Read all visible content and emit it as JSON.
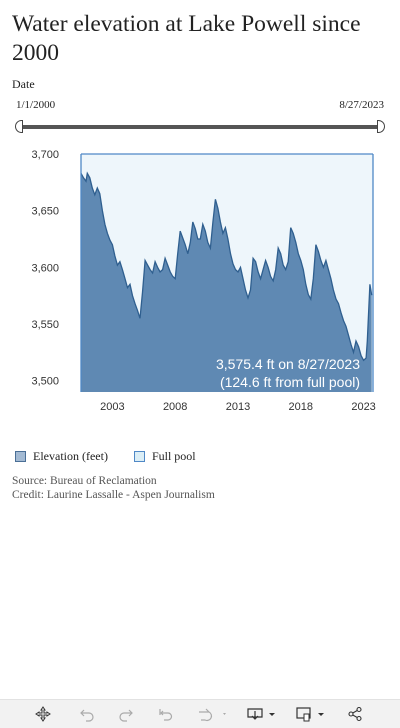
{
  "title": "Water elevation at Lake Powell since 2000",
  "filter": {
    "label": "Date",
    "start": "1/1/2000",
    "end": "8/27/2023"
  },
  "legend": [
    {
      "label": "Elevation (feet)",
      "color": "#a3bad3"
    },
    {
      "label": "Full pool",
      "color": "#dbeef6"
    }
  ],
  "source_lines": [
    "Source: Bureau of Reclamation",
    "Credit: Laurine Lassalle - Aspen Journalism"
  ],
  "colors": {
    "elevation_fill": "#5f89b3",
    "elevation_line": "#2f5f8f",
    "full_pool_fill": "#eef6fb",
    "full_pool_line": "#4f88c6"
  },
  "toolbar": {
    "icons": [
      "move-icon",
      "undo-icon",
      "redo-icon",
      "revert-icon",
      "refresh-icon",
      "download-icon",
      "device-layout-icon",
      "share-icon"
    ]
  },
  "chart_data": {
    "type": "area",
    "xlim": [
      2000.5,
      2023.75
    ],
    "ylim": [
      3490,
      3700
    ],
    "yticks": [
      3500,
      3550,
      3600,
      3650,
      3700
    ],
    "ytick_labels": [
      "3,500",
      "3,550",
      "3,600",
      "3,650",
      "3,700"
    ],
    "xticks": [
      2003,
      2008,
      2013,
      2018,
      2023
    ],
    "xtick_labels": [
      "2003",
      "2008",
      "2013",
      "2018",
      "2023"
    ],
    "full_pool": 3700,
    "annotation": [
      "3,575.4 ft on 8/27/2023",
      "(124.6 ft from full pool)"
    ],
    "series": [
      {
        "name": "Elevation (feet)",
        "x": [
          2000.5,
          2000.7,
          2000.9,
          2001.0,
          2001.2,
          2001.4,
          2001.6,
          2001.8,
          2002.0,
          2002.2,
          2002.4,
          2002.6,
          2002.8,
          2003.0,
          2003.2,
          2003.4,
          2003.6,
          2003.8,
          2004.0,
          2004.2,
          2004.4,
          2004.6,
          2004.8,
          2005.0,
          2005.2,
          2005.4,
          2005.6,
          2005.8,
          2006.0,
          2006.2,
          2006.4,
          2006.6,
          2006.8,
          2007.0,
          2007.2,
          2007.4,
          2007.6,
          2007.8,
          2008.0,
          2008.2,
          2008.4,
          2008.6,
          2008.8,
          2009.0,
          2009.2,
          2009.4,
          2009.6,
          2009.8,
          2010.0,
          2010.2,
          2010.4,
          2010.6,
          2010.8,
          2011.0,
          2011.2,
          2011.4,
          2011.6,
          2011.8,
          2012.0,
          2012.2,
          2012.4,
          2012.6,
          2012.8,
          2013.0,
          2013.2,
          2013.4,
          2013.6,
          2013.8,
          2014.0,
          2014.2,
          2014.4,
          2014.6,
          2014.8,
          2015.0,
          2015.2,
          2015.4,
          2015.6,
          2015.8,
          2016.0,
          2016.2,
          2016.4,
          2016.6,
          2016.8,
          2017.0,
          2017.2,
          2017.4,
          2017.6,
          2017.8,
          2018.0,
          2018.2,
          2018.4,
          2018.6,
          2018.8,
          2019.0,
          2019.2,
          2019.4,
          2019.6,
          2019.8,
          2020.0,
          2020.2,
          2020.4,
          2020.6,
          2020.8,
          2021.0,
          2021.2,
          2021.4,
          2021.6,
          2021.8,
          2022.0,
          2022.2,
          2022.4,
          2022.6,
          2022.8,
          2023.0,
          2023.2,
          2023.3,
          2023.5,
          2023.65
        ],
        "values": [
          3683,
          3679,
          3676,
          3683,
          3679,
          3670,
          3664,
          3670,
          3665,
          3650,
          3638,
          3630,
          3624,
          3620,
          3610,
          3602,
          3605,
          3598,
          3590,
          3582,
          3585,
          3575,
          3568,
          3562,
          3555,
          3578,
          3606,
          3602,
          3598,
          3595,
          3605,
          3600,
          3596,
          3598,
          3608,
          3602,
          3596,
          3592,
          3590,
          3612,
          3632,
          3626,
          3620,
          3612,
          3622,
          3640,
          3634,
          3625,
          3625,
          3638,
          3632,
          3622,
          3617,
          3640,
          3660,
          3652,
          3640,
          3630,
          3635,
          3625,
          3612,
          3603,
          3598,
          3596,
          3600,
          3590,
          3580,
          3573,
          3580,
          3608,
          3605,
          3596,
          3590,
          3598,
          3606,
          3600,
          3592,
          3588,
          3598,
          3617,
          3612,
          3602,
          3598,
          3605,
          3635,
          3630,
          3622,
          3612,
          3606,
          3598,
          3585,
          3576,
          3572,
          3590,
          3620,
          3614,
          3606,
          3600,
          3606,
          3598,
          3590,
          3580,
          3572,
          3568,
          3560,
          3553,
          3548,
          3540,
          3532,
          3525,
          3535,
          3530,
          3522,
          3518,
          3520,
          3535,
          3585,
          3575.4
        ]
      }
    ]
  }
}
